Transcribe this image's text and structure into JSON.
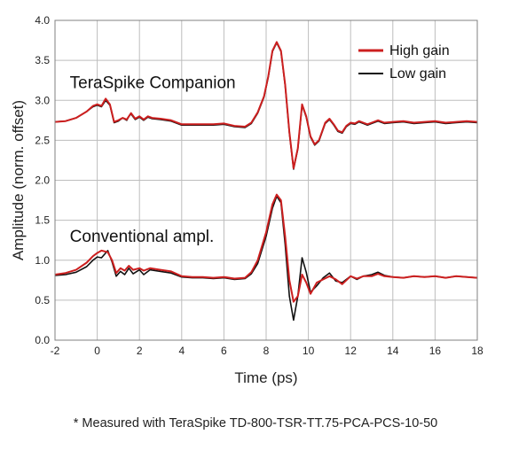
{
  "footnote": "* Measured with TeraSpike TD-800-TSR-TT.75-PCA-PCS-10-50",
  "chart_data": {
    "type": "line",
    "xlabel": "Time (ps)",
    "ylabel": "Amplitude (norm. offset)",
    "xlim": [
      -2,
      18
    ],
    "ylim": [
      0,
      4
    ],
    "xticks": [
      -2,
      0,
      2,
      4,
      6,
      8,
      10,
      12,
      14,
      16,
      18
    ],
    "yticks": [
      0.0,
      0.5,
      1.0,
      1.5,
      2.0,
      2.5,
      3.0,
      3.5,
      4.0
    ],
    "ytick_labels": [
      "0.0",
      "0.5",
      "1.0",
      "1.5",
      "2.0",
      "2.5",
      "3.0",
      "3.5",
      "4.0"
    ],
    "grid": true,
    "legend_position": "top-right",
    "annotations": [
      {
        "text": "TeraSpike Companion",
        "x": -1.3,
        "y": 3.15
      },
      {
        "text": "Conventional ampl.",
        "x": -1.3,
        "y": 1.23
      }
    ],
    "series": [
      {
        "name": "High gain",
        "color": "#cc1f1f",
        "group": "TeraSpike Companion",
        "x": [
          -2,
          -1.5,
          -1,
          -0.5,
          -0.2,
          0,
          0.2,
          0.4,
          0.6,
          0.8,
          1.0,
          1.2,
          1.4,
          1.5,
          1.6,
          1.8,
          2.0,
          2.2,
          2.4,
          2.6,
          3.0,
          3.5,
          4.0,
          4.5,
          5.0,
          5.5,
          6.0,
          6.5,
          7.0,
          7.3,
          7.6,
          7.9,
          8.1,
          8.3,
          8.5,
          8.7,
          8.9,
          9.1,
          9.3,
          9.5,
          9.7,
          9.9,
          10.1,
          10.3,
          10.5,
          10.8,
          11.0,
          11.2,
          11.4,
          11.6,
          11.8,
          12.0,
          12.2,
          12.4,
          12.6,
          12.8,
          13.0,
          13.3,
          13.6,
          14.0,
          14.5,
          15.0,
          15.5,
          16.0,
          16.5,
          17.0,
          17.5,
          18.0
        ],
        "y": [
          2.73,
          2.74,
          2.78,
          2.86,
          2.93,
          2.95,
          2.93,
          3.02,
          2.95,
          2.73,
          2.75,
          2.78,
          2.76,
          2.8,
          2.84,
          2.77,
          2.8,
          2.76,
          2.8,
          2.78,
          2.77,
          2.75,
          2.7,
          2.7,
          2.7,
          2.7,
          2.71,
          2.68,
          2.67,
          2.72,
          2.85,
          3.05,
          3.3,
          3.62,
          3.73,
          3.62,
          3.2,
          2.6,
          2.15,
          2.4,
          2.95,
          2.8,
          2.55,
          2.45,
          2.5,
          2.72,
          2.77,
          2.7,
          2.62,
          2.6,
          2.68,
          2.72,
          2.71,
          2.74,
          2.72,
          2.7,
          2.72,
          2.75,
          2.72,
          2.73,
          2.74,
          2.72,
          2.73,
          2.74,
          2.72,
          2.73,
          2.74,
          2.73
        ]
      },
      {
        "name": "Low gain",
        "color": "#111111",
        "group": "TeraSpike Companion",
        "x": [
          -2,
          -1.5,
          -1,
          -0.5,
          -0.2,
          0,
          0.2,
          0.4,
          0.6,
          0.8,
          1.0,
          1.2,
          1.4,
          1.5,
          1.6,
          1.8,
          2.0,
          2.2,
          2.4,
          2.6,
          3.0,
          3.5,
          4.0,
          4.5,
          5.0,
          5.5,
          6.0,
          6.5,
          7.0,
          7.3,
          7.6,
          7.9,
          8.1,
          8.3,
          8.5,
          8.7,
          8.9,
          9.1,
          9.3,
          9.5,
          9.7,
          9.9,
          10.1,
          10.3,
          10.5,
          10.8,
          11.0,
          11.2,
          11.4,
          11.6,
          11.8,
          12.0,
          12.2,
          12.4,
          12.6,
          12.8,
          13.0,
          13.3,
          13.6,
          14.0,
          14.5,
          15.0,
          15.5,
          16.0,
          16.5,
          17.0,
          17.5,
          18.0
        ],
        "y": [
          2.73,
          2.74,
          2.78,
          2.86,
          2.92,
          2.94,
          2.92,
          3.0,
          2.94,
          2.72,
          2.74,
          2.78,
          2.75,
          2.8,
          2.83,
          2.76,
          2.79,
          2.75,
          2.79,
          2.77,
          2.76,
          2.74,
          2.69,
          2.69,
          2.69,
          2.69,
          2.7,
          2.67,
          2.66,
          2.71,
          2.84,
          3.04,
          3.29,
          3.61,
          3.72,
          3.61,
          3.19,
          2.59,
          2.14,
          2.39,
          2.94,
          2.79,
          2.54,
          2.44,
          2.49,
          2.71,
          2.76,
          2.69,
          2.61,
          2.59,
          2.67,
          2.71,
          2.7,
          2.73,
          2.71,
          2.69,
          2.71,
          2.74,
          2.71,
          2.72,
          2.73,
          2.71,
          2.72,
          2.73,
          2.71,
          2.72,
          2.73,
          2.72
        ]
      },
      {
        "name": "High gain",
        "color": "#cc1f1f",
        "group": "Conventional ampl.",
        "x": [
          -2,
          -1.5,
          -1,
          -0.5,
          -0.2,
          0,
          0.2,
          0.5,
          0.7,
          0.9,
          1.1,
          1.3,
          1.5,
          1.7,
          2.0,
          2.2,
          2.5,
          3.0,
          3.5,
          4.0,
          4.5,
          5.0,
          5.5,
          6.0,
          6.5,
          7.0,
          7.3,
          7.6,
          8.0,
          8.3,
          8.5,
          8.7,
          8.9,
          9.1,
          9.3,
          9.5,
          9.7,
          9.9,
          10.1,
          10.4,
          10.7,
          11.0,
          11.3,
          11.6,
          12.0,
          12.3,
          12.6,
          13.0,
          13.3,
          13.6,
          14.0,
          14.5,
          15.0,
          15.5,
          16.0,
          16.5,
          17.0,
          17.5,
          18.0
        ],
        "y": [
          0.82,
          0.84,
          0.88,
          0.97,
          1.05,
          1.09,
          1.12,
          1.1,
          1.0,
          0.84,
          0.9,
          0.87,
          0.93,
          0.88,
          0.9,
          0.87,
          0.9,
          0.88,
          0.86,
          0.8,
          0.79,
          0.79,
          0.78,
          0.79,
          0.77,
          0.78,
          0.85,
          1.0,
          1.35,
          1.7,
          1.82,
          1.75,
          1.3,
          0.75,
          0.48,
          0.55,
          0.82,
          0.72,
          0.58,
          0.72,
          0.76,
          0.8,
          0.76,
          0.7,
          0.8,
          0.77,
          0.8,
          0.8,
          0.83,
          0.8,
          0.79,
          0.78,
          0.8,
          0.79,
          0.8,
          0.78,
          0.8,
          0.79,
          0.78
        ]
      },
      {
        "name": "Low gain",
        "color": "#111111",
        "group": "Conventional ampl.",
        "x": [
          -2,
          -1.5,
          -1,
          -0.5,
          -0.2,
          0,
          0.2,
          0.5,
          0.7,
          0.9,
          1.1,
          1.3,
          1.5,
          1.7,
          2.0,
          2.2,
          2.5,
          3.0,
          3.5,
          4.0,
          4.5,
          5.0,
          5.5,
          6.0,
          6.5,
          7.0,
          7.3,
          7.6,
          8.0,
          8.3,
          8.5,
          8.7,
          8.9,
          9.1,
          9.3,
          9.5,
          9.7,
          9.9,
          10.1,
          10.4,
          10.7,
          11.0,
          11.3,
          11.6,
          12.0,
          12.3,
          12.6,
          13.0,
          13.3,
          13.6,
          14.0,
          14.5,
          15.0,
          15.5,
          16.0,
          16.5,
          17.0,
          17.5,
          18.0
        ],
        "y": [
          0.81,
          0.82,
          0.85,
          0.92,
          1.0,
          1.04,
          1.03,
          1.12,
          0.98,
          0.8,
          0.86,
          0.82,
          0.9,
          0.83,
          0.88,
          0.82,
          0.88,
          0.86,
          0.84,
          0.79,
          0.78,
          0.78,
          0.77,
          0.78,
          0.76,
          0.77,
          0.83,
          0.96,
          1.3,
          1.65,
          1.8,
          1.72,
          1.2,
          0.55,
          0.25,
          0.55,
          1.03,
          0.85,
          0.6,
          0.68,
          0.78,
          0.84,
          0.74,
          0.72,
          0.8,
          0.76,
          0.8,
          0.82,
          0.85,
          0.81,
          0.79,
          0.78,
          0.8,
          0.79,
          0.8,
          0.78,
          0.8,
          0.79,
          0.78
        ]
      }
    ]
  }
}
